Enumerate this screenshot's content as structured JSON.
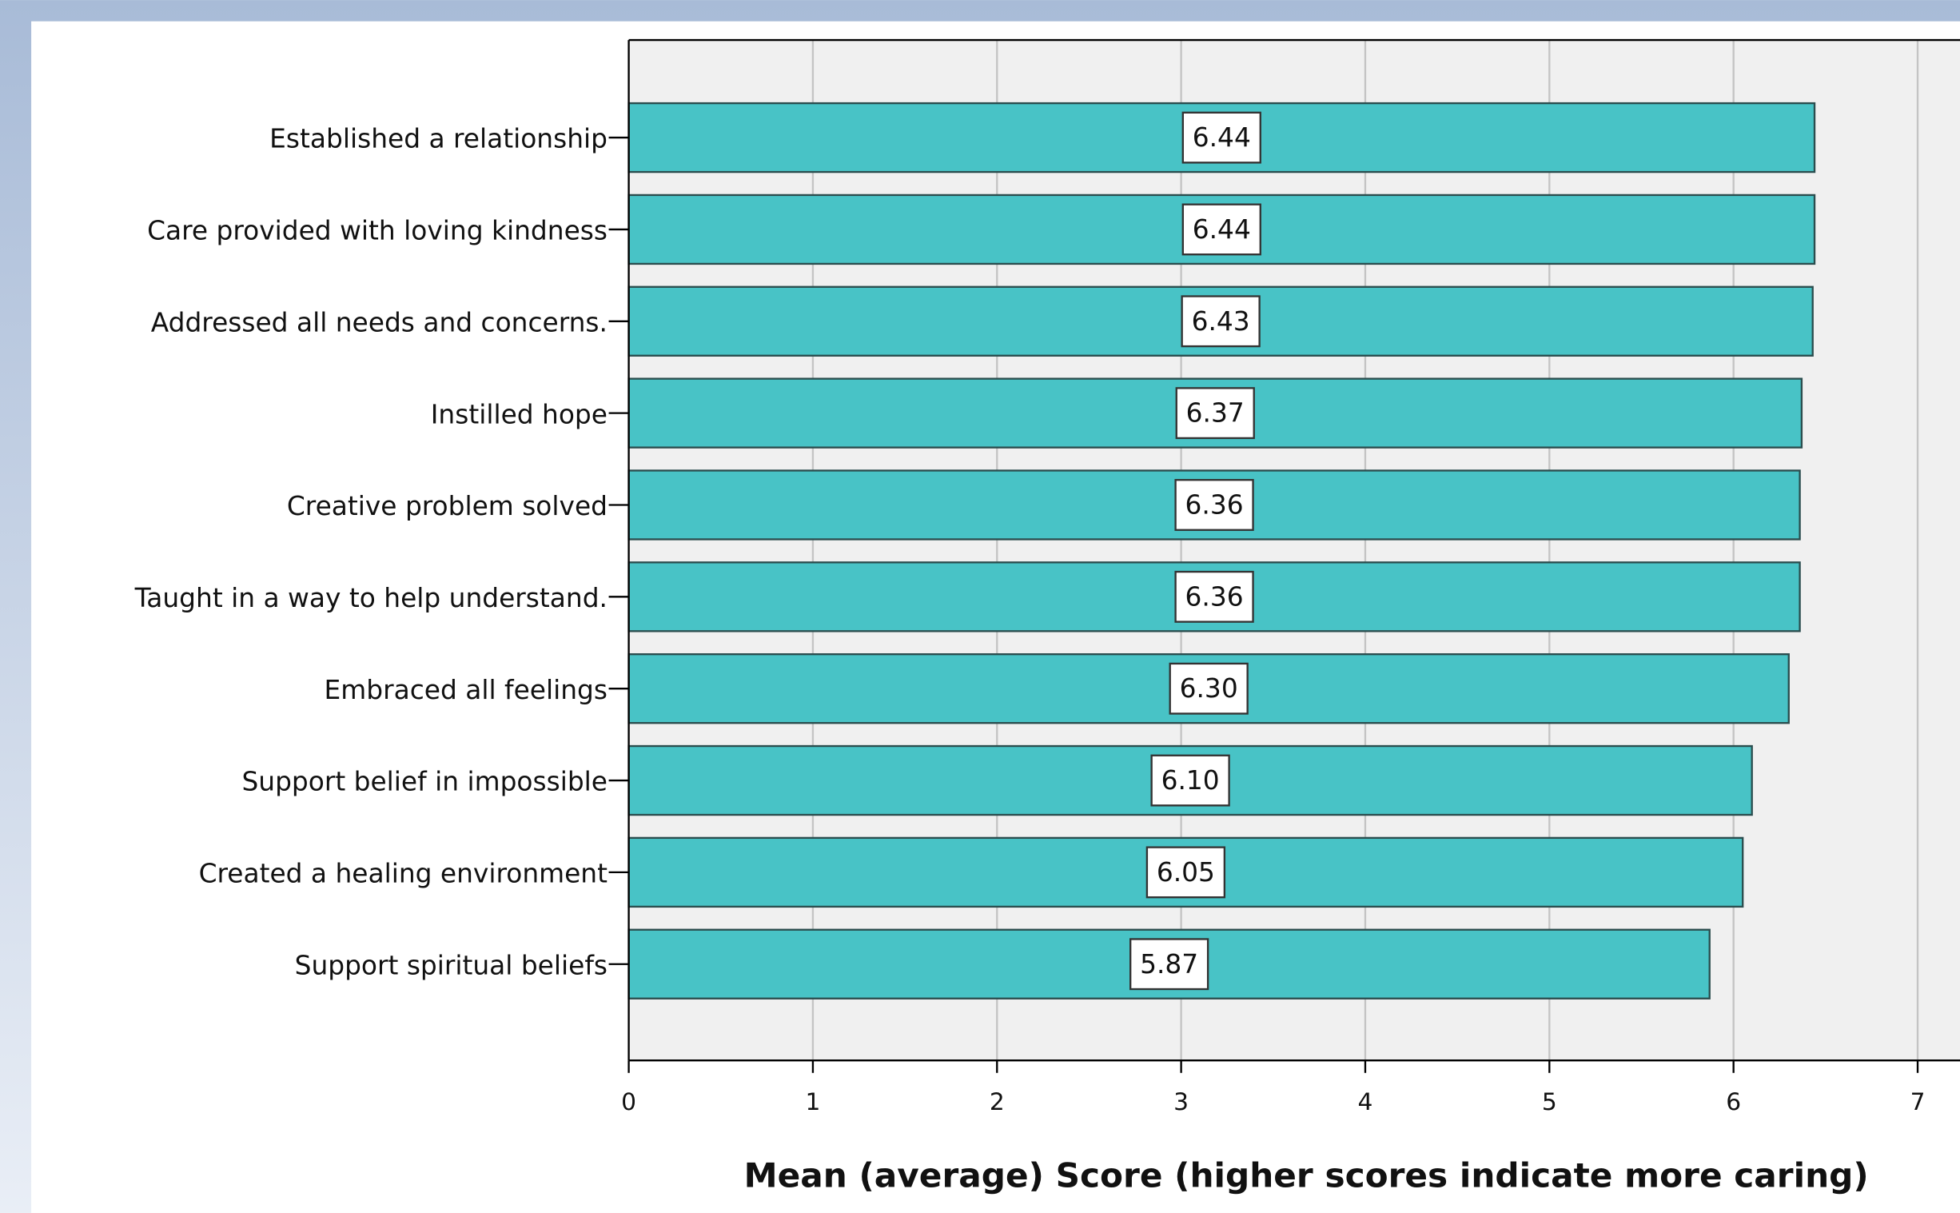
{
  "chart_data": {
    "type": "barh",
    "x_label": "Mean (average) Score (higher scores indicate more caring)",
    "categories": [
      "Established a relationship",
      "Care provided with loving kindness",
      "Addressed all needs and concerns.",
      "Instilled hope",
      "Creative problem solved",
      "Taught in a way to help understand.",
      "Embraced all feelings",
      "Support belief in impossible",
      "Created a healing environment",
      "Support spiritual beliefs"
    ],
    "values": [
      6.44,
      6.44,
      6.43,
      6.37,
      6.36,
      6.36,
      6.3,
      6.1,
      6.05,
      5.87
    ],
    "value_labels": [
      "6.44",
      "6.44",
      "6.43",
      "6.37",
      "6.36",
      "6.36",
      "6.30",
      "6.10",
      "6.05",
      "5.87"
    ],
    "color": "#48c3c6",
    "xlim": [
      0,
      7.23
    ],
    "xticks": [
      0,
      1,
      2,
      3,
      4,
      5,
      6,
      7
    ],
    "grid": true
  }
}
